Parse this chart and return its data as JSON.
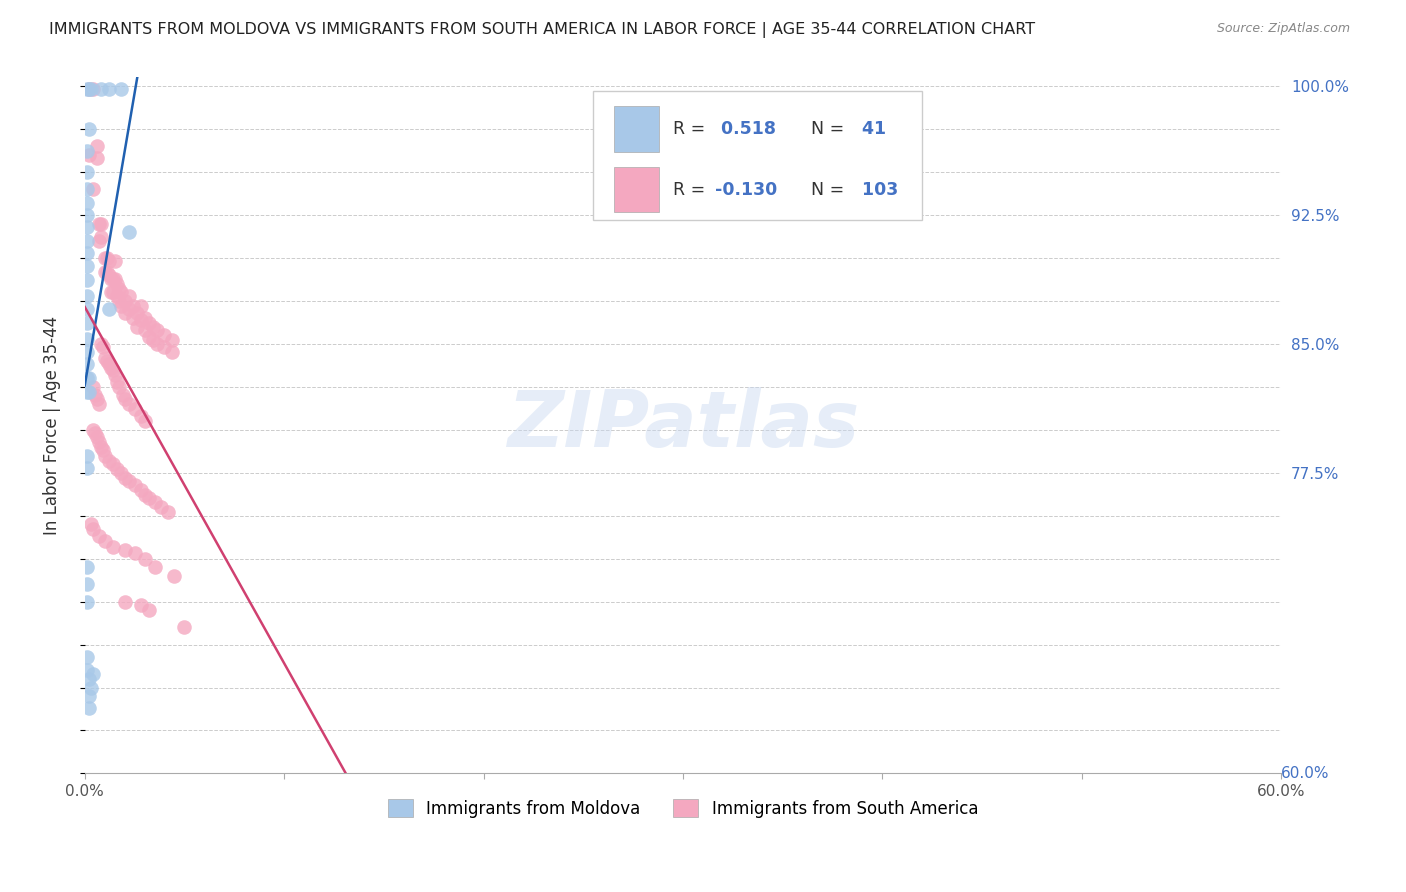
{
  "title": "IMMIGRANTS FROM MOLDOVA VS IMMIGRANTS FROM SOUTH AMERICA IN LABOR FORCE | AGE 35-44 CORRELATION CHART",
  "source": "Source: ZipAtlas.com",
  "ylabel": "In Labor Force | Age 35-44",
  "xlim": [
    0.0,
    0.6
  ],
  "ylim": [
    0.6,
    1.005
  ],
  "right_yticks": [
    1.0,
    0.925,
    0.85,
    0.775
  ],
  "right_yticklabels": [
    "100.0%",
    "92.5%",
    "85.0%",
    "77.5%"
  ],
  "moldova_R": 0.518,
  "moldova_N": 41,
  "sa_R": -0.13,
  "sa_N": 103,
  "moldova_color": "#a8c8e8",
  "sa_color": "#f4a8c0",
  "trend_moldova_color": "#2060b0",
  "trend_sa_color": "#d04070",
  "legend_label_moldova": "Immigrants from Moldova",
  "legend_label_sa": "Immigrants from South America",
  "watermark": "ZIPatlas",
  "moldova_dots": [
    [
      0.001,
      0.998
    ],
    [
      0.002,
      0.998
    ],
    [
      0.002,
      0.975
    ],
    [
      0.001,
      0.962
    ],
    [
      0.001,
      0.95
    ],
    [
      0.001,
      0.94
    ],
    [
      0.001,
      0.932
    ],
    [
      0.001,
      0.925
    ],
    [
      0.001,
      0.918
    ],
    [
      0.001,
      0.91
    ],
    [
      0.001,
      0.903
    ],
    [
      0.001,
      0.895
    ],
    [
      0.001,
      0.887
    ],
    [
      0.001,
      0.878
    ],
    [
      0.001,
      0.87
    ],
    [
      0.001,
      0.862
    ],
    [
      0.001,
      0.853
    ],
    [
      0.001,
      0.845
    ],
    [
      0.001,
      0.838
    ],
    [
      0.001,
      0.83
    ],
    [
      0.001,
      0.822
    ],
    [
      0.001,
      0.72
    ],
    [
      0.001,
      0.71
    ],
    [
      0.001,
      0.7
    ],
    [
      0.003,
      0.998
    ],
    [
      0.008,
      0.998
    ],
    [
      0.012,
      0.998
    ],
    [
      0.012,
      0.87
    ],
    [
      0.018,
      0.998
    ],
    [
      0.022,
      0.915
    ],
    [
      0.001,
      0.785
    ],
    [
      0.001,
      0.778
    ],
    [
      0.002,
      0.655
    ],
    [
      0.002,
      0.645
    ],
    [
      0.002,
      0.638
    ],
    [
      0.003,
      0.65
    ],
    [
      0.004,
      0.658
    ],
    [
      0.001,
      0.668
    ],
    [
      0.001,
      0.66
    ],
    [
      0.002,
      0.83
    ],
    [
      0.002,
      0.822
    ]
  ],
  "sa_dots": [
    [
      0.002,
      0.998
    ],
    [
      0.004,
      0.998
    ],
    [
      0.002,
      0.96
    ],
    [
      0.004,
      0.94
    ],
    [
      0.006,
      0.965
    ],
    [
      0.006,
      0.958
    ],
    [
      0.007,
      0.92
    ],
    [
      0.007,
      0.91
    ],
    [
      0.008,
      0.92
    ],
    [
      0.008,
      0.912
    ],
    [
      0.01,
      0.9
    ],
    [
      0.01,
      0.892
    ],
    [
      0.011,
      0.9
    ],
    [
      0.011,
      0.892
    ],
    [
      0.012,
      0.898
    ],
    [
      0.012,
      0.89
    ],
    [
      0.013,
      0.888
    ],
    [
      0.013,
      0.88
    ],
    [
      0.014,
      0.888
    ],
    [
      0.014,
      0.88
    ],
    [
      0.015,
      0.898
    ],
    [
      0.015,
      0.888
    ],
    [
      0.016,
      0.885
    ],
    [
      0.016,
      0.878
    ],
    [
      0.017,
      0.882
    ],
    [
      0.017,
      0.875
    ],
    [
      0.018,
      0.88
    ],
    [
      0.018,
      0.872
    ],
    [
      0.02,
      0.875
    ],
    [
      0.02,
      0.868
    ],
    [
      0.022,
      0.878
    ],
    [
      0.022,
      0.87
    ],
    [
      0.024,
      0.872
    ],
    [
      0.024,
      0.865
    ],
    [
      0.026,
      0.868
    ],
    [
      0.026,
      0.86
    ],
    [
      0.028,
      0.872
    ],
    [
      0.028,
      0.864
    ],
    [
      0.03,
      0.865
    ],
    [
      0.03,
      0.858
    ],
    [
      0.032,
      0.862
    ],
    [
      0.032,
      0.854
    ],
    [
      0.034,
      0.86
    ],
    [
      0.034,
      0.852
    ],
    [
      0.036,
      0.858
    ],
    [
      0.036,
      0.85
    ],
    [
      0.04,
      0.855
    ],
    [
      0.04,
      0.848
    ],
    [
      0.044,
      0.852
    ],
    [
      0.044,
      0.845
    ],
    [
      0.008,
      0.85
    ],
    [
      0.009,
      0.848
    ],
    [
      0.01,
      0.842
    ],
    [
      0.011,
      0.84
    ],
    [
      0.012,
      0.838
    ],
    [
      0.013,
      0.836
    ],
    [
      0.014,
      0.835
    ],
    [
      0.015,
      0.832
    ],
    [
      0.016,
      0.828
    ],
    [
      0.017,
      0.825
    ],
    [
      0.019,
      0.82
    ],
    [
      0.02,
      0.818
    ],
    [
      0.022,
      0.815
    ],
    [
      0.025,
      0.812
    ],
    [
      0.004,
      0.825
    ],
    [
      0.005,
      0.82
    ],
    [
      0.006,
      0.818
    ],
    [
      0.007,
      0.815
    ],
    [
      0.028,
      0.808
    ],
    [
      0.03,
      0.805
    ],
    [
      0.004,
      0.8
    ],
    [
      0.005,
      0.798
    ],
    [
      0.006,
      0.796
    ],
    [
      0.007,
      0.793
    ],
    [
      0.008,
      0.79
    ],
    [
      0.009,
      0.788
    ],
    [
      0.01,
      0.785
    ],
    [
      0.012,
      0.782
    ],
    [
      0.014,
      0.78
    ],
    [
      0.016,
      0.777
    ],
    [
      0.018,
      0.775
    ],
    [
      0.02,
      0.772
    ],
    [
      0.022,
      0.77
    ],
    [
      0.025,
      0.768
    ],
    [
      0.028,
      0.765
    ],
    [
      0.03,
      0.762
    ],
    [
      0.032,
      0.76
    ],
    [
      0.035,
      0.758
    ],
    [
      0.038,
      0.755
    ],
    [
      0.042,
      0.752
    ],
    [
      0.003,
      0.745
    ],
    [
      0.004,
      0.742
    ],
    [
      0.007,
      0.738
    ],
    [
      0.01,
      0.735
    ],
    [
      0.014,
      0.732
    ],
    [
      0.02,
      0.73
    ],
    [
      0.025,
      0.728
    ],
    [
      0.03,
      0.725
    ],
    [
      0.035,
      0.72
    ],
    [
      0.045,
      0.715
    ],
    [
      0.02,
      0.7
    ],
    [
      0.028,
      0.698
    ],
    [
      0.032,
      0.695
    ],
    [
      0.05,
      0.685
    ]
  ]
}
